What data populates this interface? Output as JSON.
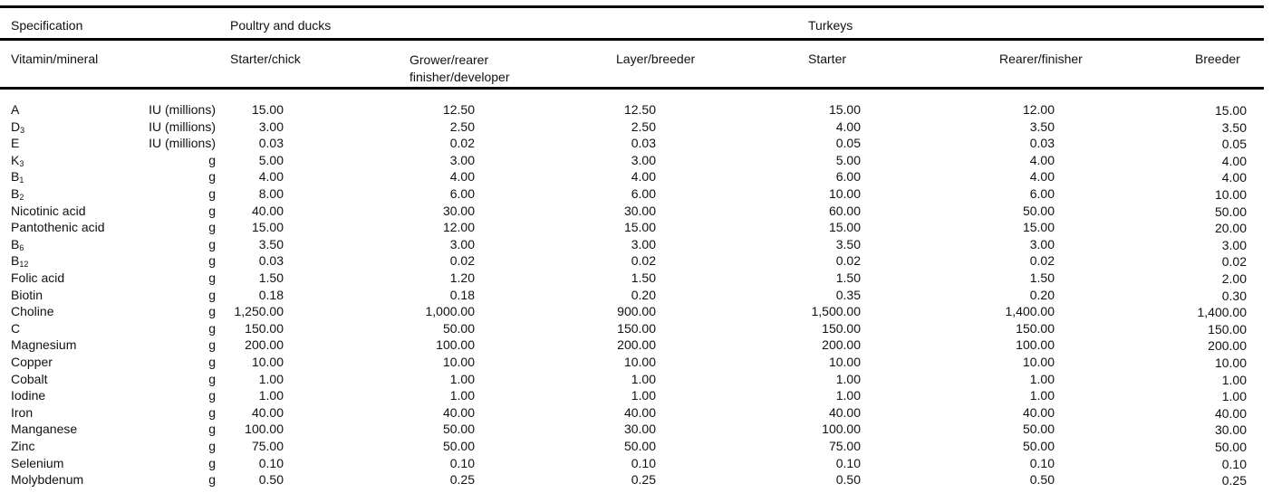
{
  "header": {
    "specification": "Specification",
    "group_poultry": "Poultry and ducks",
    "group_turkeys": "Turkeys",
    "vitamin_mineral": "Vitamin/mineral",
    "columns": [
      "Starter/chick",
      "Grower/rearer finisher/developer",
      "Layer/breeder",
      "Starter",
      "Rearer/finisher",
      "Breeder"
    ]
  },
  "rows": [
    {
      "name": "A",
      "sub": "",
      "unit": "IU (millions)",
      "values": [
        "15.00",
        "12.50",
        "12.50",
        "15.00",
        "12.00",
        "15.00"
      ]
    },
    {
      "name": "D",
      "sub": "3",
      "unit": "IU (millions)",
      "values": [
        "3.00",
        "2.50",
        "2.50",
        "4.00",
        "3.50",
        "3.50"
      ]
    },
    {
      "name": "E",
      "sub": "",
      "unit": "IU (millions)",
      "values": [
        "0.03",
        "0.02",
        "0.03",
        "0.05",
        "0.03",
        "0.05"
      ]
    },
    {
      "name": "K",
      "sub": "3",
      "unit": "g",
      "values": [
        "5.00",
        "3.00",
        "3.00",
        "5.00",
        "4.00",
        "4.00"
      ]
    },
    {
      "name": "B",
      "sub": "1",
      "unit": "g",
      "values": [
        "4.00",
        "4.00",
        "4.00",
        "6.00",
        "4.00",
        "4.00"
      ]
    },
    {
      "name": "B",
      "sub": "2",
      "unit": "g",
      "values": [
        "8.00",
        "6.00",
        "6.00",
        "10.00",
        "6.00",
        "10.00"
      ]
    },
    {
      "name": "Nicotinic acid",
      "sub": "",
      "unit": "g",
      "values": [
        "40.00",
        "30.00",
        "30.00",
        "60.00",
        "50.00",
        "50.00"
      ]
    },
    {
      "name": "Pantothenic acid",
      "sub": "",
      "unit": "g",
      "values": [
        "15.00",
        "12.00",
        "15.00",
        "15.00",
        "15.00",
        "20.00"
      ]
    },
    {
      "name": "B",
      "sub": "6",
      "unit": "g",
      "values": [
        "3.50",
        "3.00",
        "3.00",
        "3.50",
        "3.00",
        "3.00"
      ]
    },
    {
      "name": "B",
      "sub": "12",
      "unit": "g",
      "values": [
        "0.03",
        "0.02",
        "0.02",
        "0.02",
        "0.02",
        "0.02"
      ]
    },
    {
      "name": "Folic acid",
      "sub": "",
      "unit": "g",
      "values": [
        "1.50",
        "1.20",
        "1.50",
        "1.50",
        "1.50",
        "2.00"
      ]
    },
    {
      "name": "Biotin",
      "sub": "",
      "unit": "g",
      "values": [
        "0.18",
        "0.18",
        "0.20",
        "0.35",
        "0.20",
        "0.30"
      ]
    },
    {
      "name": "Choline",
      "sub": "",
      "unit": "g",
      "values": [
        "1,250.00",
        "1,000.00",
        "900.00",
        "1,500.00",
        "1,400.00",
        "1,400.00"
      ]
    },
    {
      "name": "C",
      "sub": "",
      "unit": "g",
      "values": [
        "150.00",
        "50.00",
        "150.00",
        "150.00",
        "150.00",
        "150.00"
      ]
    },
    {
      "name": "Magnesium",
      "sub": "",
      "unit": "g",
      "values": [
        "200.00",
        "100.00",
        "200.00",
        "200.00",
        "100.00",
        "200.00"
      ]
    },
    {
      "name": "Copper",
      "sub": "",
      "unit": "g",
      "values": [
        "10.00",
        "10.00",
        "10.00",
        "10.00",
        "10.00",
        "10.00"
      ]
    },
    {
      "name": "Cobalt",
      "sub": "",
      "unit": "g",
      "values": [
        "1.00",
        "1.00",
        "1.00",
        "1.00",
        "1.00",
        "1.00"
      ]
    },
    {
      "name": "Iodine",
      "sub": "",
      "unit": "g",
      "values": [
        "1.00",
        "1.00",
        "1.00",
        "1.00",
        "1.00",
        "1.00"
      ]
    },
    {
      "name": "Iron",
      "sub": "",
      "unit": "g",
      "values": [
        "40.00",
        "40.00",
        "40.00",
        "40.00",
        "40.00",
        "40.00"
      ]
    },
    {
      "name": "Manganese",
      "sub": "",
      "unit": "g",
      "values": [
        "100.00",
        "50.00",
        "30.00",
        "100.00",
        "50.00",
        "30.00"
      ]
    },
    {
      "name": "Zinc",
      "sub": "",
      "unit": "g",
      "values": [
        "75.00",
        "50.00",
        "50.00",
        "75.00",
        "50.00",
        "50.00"
      ]
    },
    {
      "name": "Selenium",
      "sub": "",
      "unit": "g",
      "values": [
        "0.10",
        "0.10",
        "0.10",
        "0.10",
        "0.10",
        "0.10"
      ]
    },
    {
      "name": "Molybdenum",
      "sub": "",
      "unit": "g",
      "values": [
        "0.50",
        "0.25",
        "0.25",
        "0.50",
        "0.50",
        "0.25"
      ]
    }
  ]
}
